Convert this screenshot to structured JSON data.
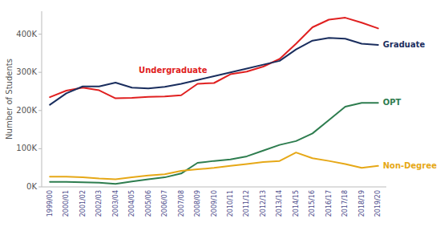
{
  "chart_data": {
    "type": "line",
    "categories": [
      "1999/00",
      "2000/01",
      "2001/02",
      "2002/03",
      "2003/04",
      "2004/05",
      "2005/06",
      "2006/07",
      "2007/08",
      "2008/09",
      "2009/10",
      "2010/11",
      "2011/12",
      "2012/13",
      "2013/14",
      "2014/15",
      "2015/16",
      "2016/17",
      "2017/18",
      "2018/19",
      "2019/20"
    ],
    "series": [
      {
        "name": "Undergraduate",
        "color": "#e02020",
        "values": [
          235000,
          252000,
          260000,
          253000,
          232000,
          233000,
          236000,
          237000,
          240000,
          270000,
          272000,
          295000,
          302000,
          315000,
          335000,
          375000,
          418000,
          438000,
          443000,
          430000,
          415000
        ]
      },
      {
        "name": "Graduate",
        "color": "#1a2e5e",
        "values": [
          215000,
          245000,
          263000,
          263000,
          273000,
          260000,
          258000,
          262000,
          270000,
          280000,
          290000,
          300000,
          310000,
          320000,
          330000,
          360000,
          383000,
          390000,
          388000,
          375000,
          372000
        ]
      },
      {
        "name": "OPT",
        "color": "#2e7d4f",
        "values": [
          13000,
          13000,
          12000,
          11000,
          8000,
          14000,
          20000,
          25000,
          35000,
          63000,
          68000,
          72000,
          80000,
          95000,
          110000,
          120000,
          140000,
          175000,
          210000,
          220000,
          220000
        ]
      },
      {
        "name": "Non-Degree",
        "color": "#e6a817",
        "values": [
          27000,
          27000,
          25000,
          22000,
          20000,
          25000,
          30000,
          33000,
          42000,
          46000,
          50000,
          55000,
          60000,
          65000,
          68000,
          90000,
          75000,
          68000,
          60000,
          50000,
          55000
        ]
      }
    ],
    "ylabel": "Number of Students",
    "ylim": [
      0,
      460000
    ],
    "yticks": [
      {
        "value": 0,
        "label": "0K"
      },
      {
        "value": 100000,
        "label": "100K"
      },
      {
        "value": 200000,
        "label": "200K"
      },
      {
        "value": 300000,
        "label": "300K"
      },
      {
        "value": 400000,
        "label": "400K"
      }
    ],
    "grid": false
  }
}
